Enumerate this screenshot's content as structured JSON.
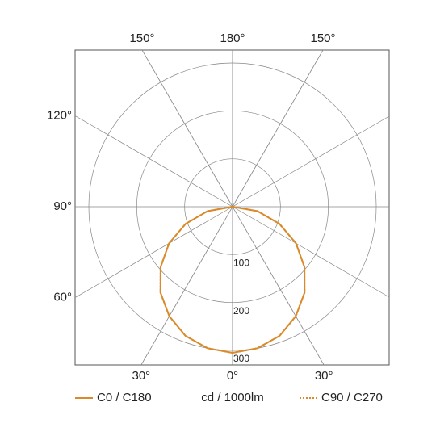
{
  "chart_data": {
    "type": "polar",
    "unit": "cd / 1000lm",
    "x": [
      0,
      10,
      20,
      30,
      40,
      50,
      60,
      70,
      80,
      90
    ],
    "series": [
      {
        "name": "C0 / C180",
        "color": "#d98a2b",
        "dash": "solid",
        "values": [
          305,
          300,
          287,
          264,
          234,
          196,
          153,
          104,
          53,
          0
        ]
      },
      {
        "name": "C90 / C270",
        "color": "#d98a2b",
        "dash": "dotted",
        "values": [
          305,
          300,
          287,
          264,
          234,
          196,
          153,
          104,
          53,
          0
        ]
      }
    ],
    "rlim": [
      0,
      300
    ],
    "rticks": [
      100,
      200,
      300
    ],
    "angle_ticks": [
      {
        "value": -150,
        "label": "150°"
      },
      {
        "value": 180,
        "label": "180°"
      },
      {
        "value": 150,
        "label": "150°"
      },
      {
        "value": -120,
        "label": "120°"
      },
      {
        "value": -90,
        "label": "90°"
      },
      {
        "value": -60,
        "label": "60°"
      },
      {
        "value": -30,
        "label": "30°"
      },
      {
        "value": 0,
        "label": "0°"
      },
      {
        "value": 30,
        "label": "30°"
      }
    ]
  }
}
